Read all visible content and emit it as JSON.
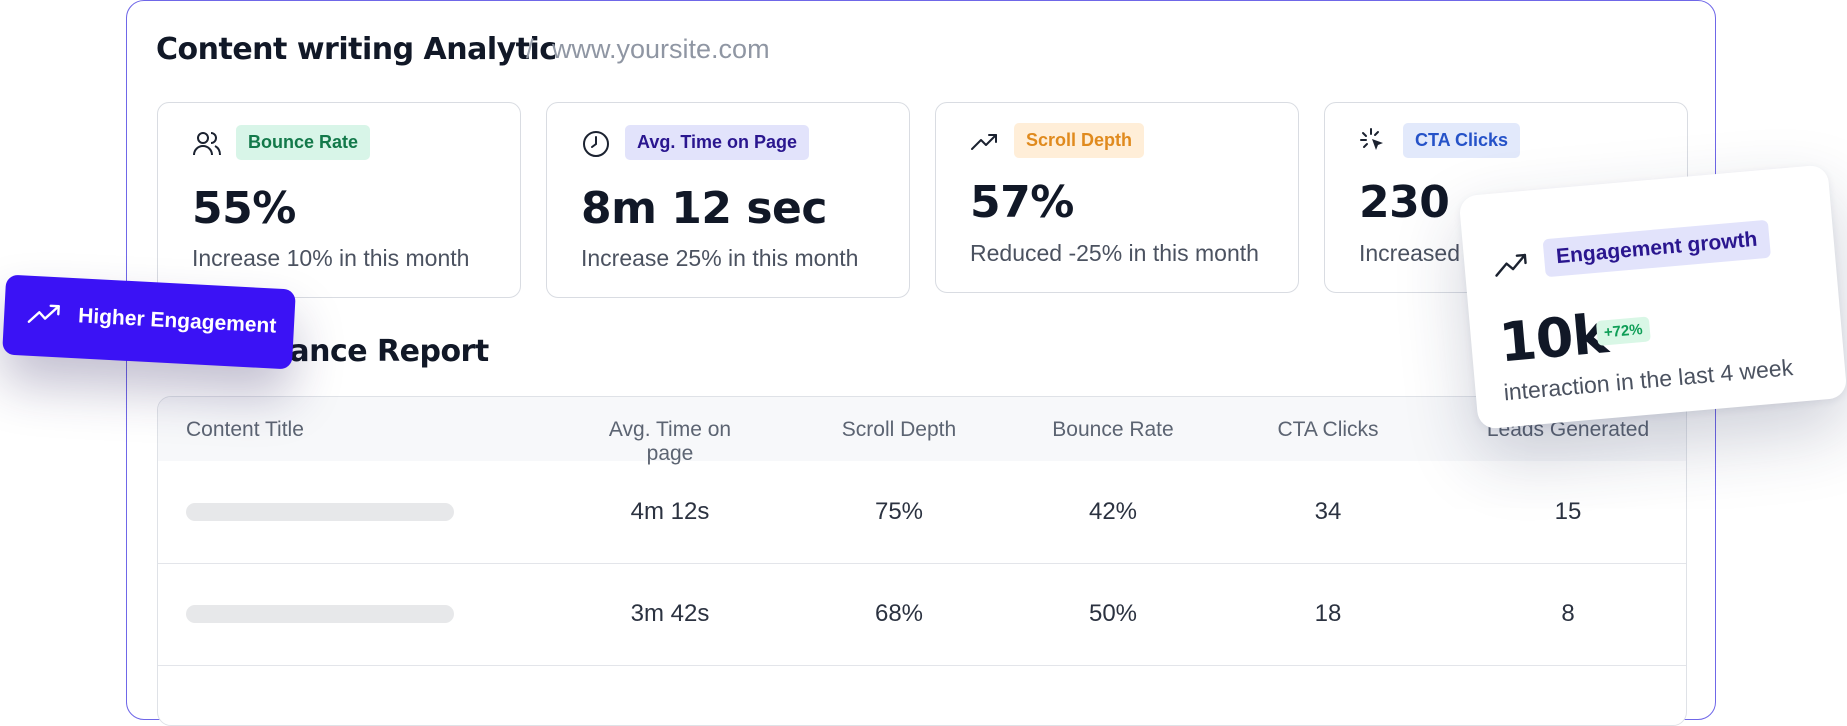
{
  "header": {
    "title": "Content writing Analytic",
    "separator": "/",
    "url": "www.yoursite.com"
  },
  "colors": {
    "frame_border": "#6f67e8",
    "accent": "#3b12f5",
    "bounce_badge_bg": "#d8f5e8",
    "time_badge_bg": "#e2e3fb",
    "scroll_badge_bg": "#ffeed8",
    "cta_badge_bg": "#e2e9fb",
    "positive": "#0f9e57"
  },
  "cards": [
    {
      "icon": "users-icon",
      "badge": "Bounce Rate",
      "value": "55%",
      "note": "Increase 10% in this month"
    },
    {
      "icon": "clock-icon",
      "badge": "Avg. Time on Page",
      "value": "8m 12 sec",
      "note": "Increase 25% in this month"
    },
    {
      "icon": "trend-up-icon",
      "badge": "Scroll Depth",
      "value": "57%",
      "note": "Reduced -25% in this month"
    },
    {
      "icon": "cursor-click-icon",
      "badge": "CTA Clicks",
      "value": "230",
      "note": "Increased"
    }
  ],
  "section": {
    "title": "Performance Report"
  },
  "table": {
    "columns": [
      "Content Title",
      "Avg. Time on page",
      "Scroll Depth",
      "Bounce Rate",
      "CTA Clicks",
      "Leads Generated"
    ],
    "rows": [
      {
        "time": "4m 12s",
        "scroll": "75%",
        "bounce": "42%",
        "cta": "34",
        "leads": "15"
      },
      {
        "time": "3m 42s",
        "scroll": "68%",
        "bounce": "50%",
        "cta": "18",
        "leads": "8"
      }
    ]
  },
  "float_left": {
    "icon": "trend-up-icon",
    "label": "Higher Engagement"
  },
  "float_right": {
    "icon": "trend-up-icon",
    "badge": "Engagement growth",
    "value": "10k",
    "delta": "+72%",
    "note": "interaction in the last 4 week"
  }
}
